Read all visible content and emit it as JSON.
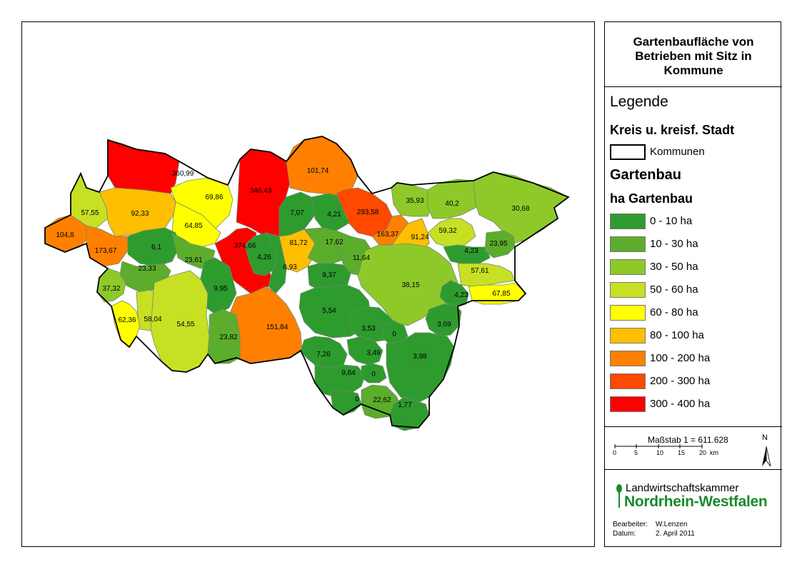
{
  "title": "Gartenbaufläche von Betrieben mit Sitz in Kommune",
  "legend": {
    "heading": "Legende",
    "boundary_heading": "Kreis u. kreisf. Stadt",
    "boundary_item": "Kommunen",
    "category_heading": "Gartenbau",
    "unit_heading": "ha Gartenbau",
    "classes": [
      {
        "label": "0 - 10 ha",
        "color": "#2e9b2e"
      },
      {
        "label": "10 - 30 ha",
        "color": "#5cad2b"
      },
      {
        "label": "30 - 50 ha",
        "color": "#8fc929"
      },
      {
        "label": "50 - 60 ha",
        "color": "#c8e024"
      },
      {
        "label": "60 - 80 ha",
        "color": "#ffff00"
      },
      {
        "label": "80 - 100 ha",
        "color": "#ffbf00"
      },
      {
        "label": "100 - 200 ha",
        "color": "#ff8000"
      },
      {
        "label": "200 - 300 ha",
        "color": "#ff4800"
      },
      {
        "label": "300 - 400 ha",
        "color": "#ff0000"
      }
    ]
  },
  "scale": {
    "label": "Maßstab  1 = 611.628",
    "ticks": [
      "0",
      "5",
      "10",
      "15",
      "20"
    ],
    "unit": "km",
    "north": "N"
  },
  "logo": {
    "line1": "Landwirtschaftskammer",
    "line2": "Nordrhein-Westfalen"
  },
  "info": {
    "author_label": "Bearbeiter:",
    "author": "W.Lenzen",
    "date_label": "Datum:",
    "date": "2. April 2011"
  },
  "municipalities": [
    {
      "value": "360,99",
      "class": 8
    },
    {
      "value": "346,43",
      "class": 8
    },
    {
      "value": "101,74",
      "class": 6
    },
    {
      "value": "69,86",
      "class": 4
    },
    {
      "value": "57,55",
      "class": 3
    },
    {
      "value": "92,33",
      "class": 5
    },
    {
      "value": "64,85",
      "class": 4
    },
    {
      "value": "7,07",
      "class": 0
    },
    {
      "value": "4,21",
      "class": 0
    },
    {
      "value": "293,58",
      "class": 7
    },
    {
      "value": "35,93",
      "class": 2
    },
    {
      "value": "40,2",
      "class": 2
    },
    {
      "value": "30,68",
      "class": 2
    },
    {
      "value": "104,8",
      "class": 6
    },
    {
      "value": "173,67",
      "class": 6
    },
    {
      "value": "6,1",
      "class": 0
    },
    {
      "value": "23,61",
      "class": 1
    },
    {
      "value": "374,66",
      "class": 8
    },
    {
      "value": "81,72",
      "class": 5
    },
    {
      "value": "17,62",
      "class": 1
    },
    {
      "value": "163,37",
      "class": 6
    },
    {
      "value": "91,24",
      "class": 5
    },
    {
      "value": "59,32",
      "class": 3
    },
    {
      "value": "4,23",
      "class": 0
    },
    {
      "value": "23,95",
      "class": 1
    },
    {
      "value": "23,33",
      "class": 1
    },
    {
      "value": "4,26",
      "class": 0
    },
    {
      "value": "6,93",
      "class": 0
    },
    {
      "value": "11,64",
      "class": 1
    },
    {
      "value": "9,37",
      "class": 0
    },
    {
      "value": "37,32",
      "class": 2
    },
    {
      "value": "9,95",
      "class": 0
    },
    {
      "value": "38,15",
      "class": 2
    },
    {
      "value": "57,61",
      "class": 3
    },
    {
      "value": "4,23",
      "class": 0
    },
    {
      "value": "67,85",
      "class": 4
    },
    {
      "value": "62,36",
      "class": 4
    },
    {
      "value": "58,04",
      "class": 3
    },
    {
      "value": "54,55",
      "class": 3
    },
    {
      "value": "5,54",
      "class": 0
    },
    {
      "value": "151,84",
      "class": 6
    },
    {
      "value": "23,82",
      "class": 1
    },
    {
      "value": "3,53",
      "class": 0
    },
    {
      "value": "0",
      "class": 0
    },
    {
      "value": "3,69",
      "class": 0
    },
    {
      "value": "7,26",
      "class": 0
    },
    {
      "value": "3,49",
      "class": 0
    },
    {
      "value": "3,98",
      "class": 0
    },
    {
      "value": "9,64",
      "class": 0
    },
    {
      "value": "0",
      "class": 0
    },
    {
      "value": "0",
      "class": 0
    },
    {
      "value": "22,62",
      "class": 1
    },
    {
      "value": "1,77",
      "class": 0
    }
  ]
}
